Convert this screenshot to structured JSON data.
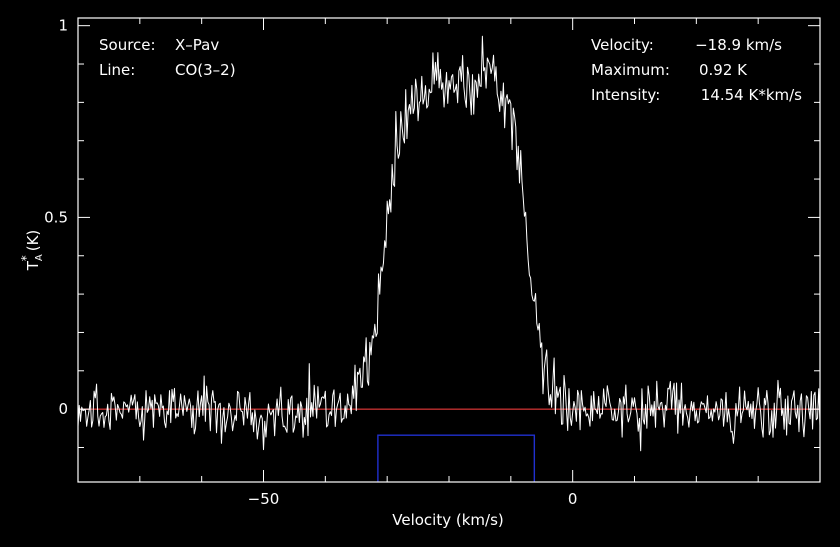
{
  "chart_data": {
    "type": "line",
    "xlabel": "Velocity (km/s)",
    "ylabel_main": "T",
    "ylabel_sup": "*",
    "ylabel_sub": "A",
    "ylabel_unit": "(K)",
    "xlim": [
      -80,
      40
    ],
    "ylim": [
      -0.19,
      1.02
    ],
    "x_ticks": [
      {
        "value": -50,
        "label": "−50"
      },
      {
        "value": 0,
        "label": "0"
      }
    ],
    "x_minor_step": 10,
    "y_ticks": [
      {
        "value": 0,
        "label": "0"
      },
      {
        "value": 0.5,
        "label": "0.5"
      },
      {
        "value": 1,
        "label": "1"
      }
    ],
    "y_minor_step": 0.1,
    "baseline": {
      "value": 0,
      "color": "#c03030"
    },
    "window": {
      "x_start": -31.5,
      "x_end": -6.2,
      "y_top": -0.068,
      "color": "#2030d0"
    },
    "annotations_left": [
      {
        "key": "Source:",
        "value": "X–Pav"
      },
      {
        "key": "Line:",
        "value": "CO(3–2)"
      }
    ],
    "annotations_right": [
      {
        "key": "Velocity:",
        "value": "−18.9 km/s"
      },
      {
        "key": "Maximum:",
        "value": "0.92 K"
      },
      {
        "key": "Intensity:",
        "value": "14.54 K*km/s"
      }
    ],
    "series": [
      {
        "color": "#ffffff",
        "profile": {
          "x_start": -80,
          "x_end": 40,
          "step": 0.2,
          "center": -18.9,
          "peak": 0.85,
          "half_width": 11.6,
          "edge": 1.5,
          "horn_amp": 0.04,
          "noise_rms": 0.035
        }
      }
    ]
  }
}
